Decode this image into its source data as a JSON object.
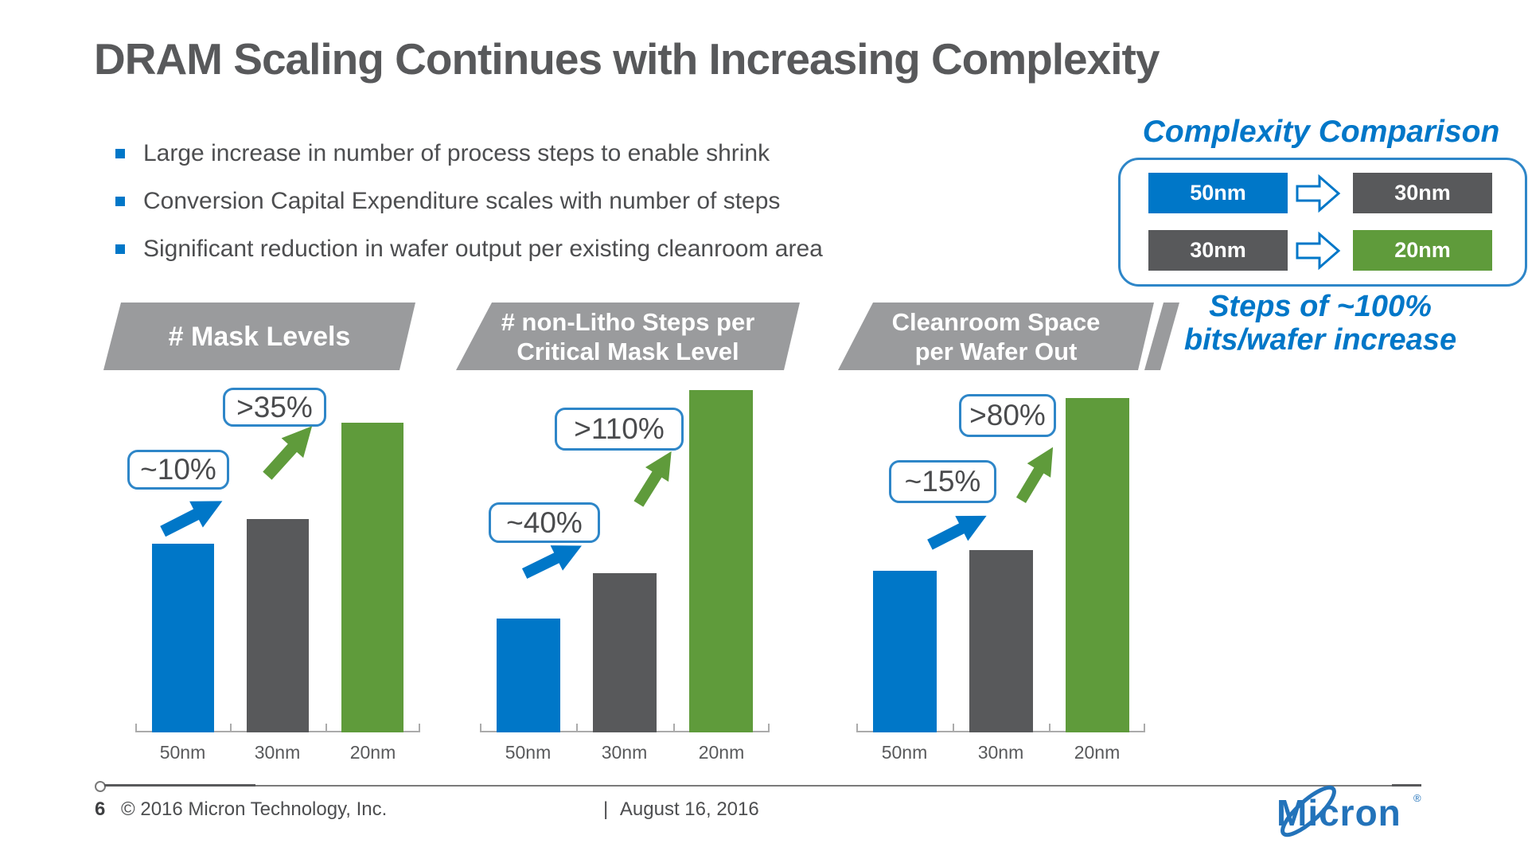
{
  "colors": {
    "accent_blue": "#0077C8",
    "bar_gray": "#58595B",
    "bar_green": "#5F9B3B",
    "banner_gray": "#9A9B9D",
    "callout_border_blue": "#2E86C8",
    "text_dark_gray": "#58595B",
    "logo_blue": "#2373BA"
  },
  "series_colors": [
    "#0077C8",
    "#58595B",
    "#5F9B3B"
  ],
  "slide": {
    "title": "DRAM Scaling Continues with Increasing Complexity",
    "bullets": [
      "Large increase in number of process steps to enable shrink",
      "Conversion Capital Expenditure scales with number of steps",
      "Significant reduction in wafer output per existing cleanroom area"
    ],
    "comparison": {
      "title": "Complexity Comparison",
      "rows": [
        {
          "from": "50nm",
          "to": "30nm"
        },
        {
          "from": "30nm",
          "to": "20nm"
        }
      ],
      "caption_line1": "Steps of ~100%",
      "caption_line2": "bits/wafer increase"
    },
    "footer": {
      "page_number": "6",
      "copyright": "© 2016 Micron Technology, Inc.",
      "date_separator": "|",
      "date": "August 16, 2016",
      "logo_text": "Micron",
      "logo_reg": "®"
    }
  },
  "chart_data": [
    {
      "type": "bar",
      "title": "# Mask Levels",
      "title_lines": [
        "# Mask Levels"
      ],
      "categories": [
        "50nm",
        "30nm",
        "20nm"
      ],
      "values": [
        100,
        113,
        164
      ],
      "value_note": "relative scale, 50nm bar = 100; no numeric y-axis shown",
      "ylabel": "",
      "grid": false,
      "annotations": [
        {
          "label": "~10%",
          "between": [
            "50nm",
            "30nm"
          ],
          "arrow_color": "#0077C8"
        },
        {
          "label": ">35%",
          "between": [
            "30nm",
            "20nm"
          ],
          "arrow_color": "#5F9B3B"
        }
      ]
    },
    {
      "type": "bar",
      "title": "# non-Litho Steps per Critical Mask Level",
      "title_lines": [
        "# non-Litho Steps per",
        "Critical Mask Level"
      ],
      "categories": [
        "50nm",
        "30nm",
        "20nm"
      ],
      "values": [
        100,
        140,
        301
      ],
      "value_note": "relative scale, 50nm bar = 100; no numeric y-axis shown",
      "ylabel": "",
      "grid": false,
      "annotations": [
        {
          "label": "~40%",
          "between": [
            "50nm",
            "30nm"
          ],
          "arrow_color": "#0077C8"
        },
        {
          "label": ">110%",
          "between": [
            "30nm",
            "20nm"
          ],
          "arrow_color": "#5F9B3B"
        }
      ]
    },
    {
      "type": "bar",
      "title": "Cleanroom Space per Wafer Out",
      "title_lines": [
        "Cleanroom Space",
        "per Wafer Out"
      ],
      "categories": [
        "50nm",
        "30nm",
        "20nm"
      ],
      "values": [
        100,
        113,
        207
      ],
      "value_note": "relative scale, 50nm bar = 100; no numeric y-axis shown",
      "ylabel": "",
      "grid": false,
      "annotations": [
        {
          "label": "~15%",
          "between": [
            "50nm",
            "30nm"
          ],
          "arrow_color": "#0077C8"
        },
        {
          "label": ">80%",
          "between": [
            "30nm",
            "20nm"
          ],
          "arrow_color": "#5F9B3B"
        }
      ]
    }
  ]
}
